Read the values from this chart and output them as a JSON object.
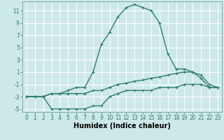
{
  "title": "",
  "xlabel": "Humidex (Indice chaleur)",
  "ylabel": "",
  "bg_color": "#cde8e8",
  "grid_color": "#b8d8d8",
  "line_color": "#2e7d6e",
  "xlim": [
    -0.5,
    23.5
  ],
  "ylim": [
    -5.5,
    12.5
  ],
  "xticks": [
    0,
    1,
    2,
    3,
    4,
    5,
    6,
    7,
    8,
    9,
    10,
    11,
    12,
    13,
    14,
    15,
    16,
    17,
    18,
    19,
    20,
    21,
    22,
    23
  ],
  "yticks": [
    -5,
    -3,
    -1,
    1,
    3,
    5,
    7,
    9,
    11
  ],
  "series1_x": [
    0,
    1,
    2,
    3,
    4,
    5,
    6,
    7,
    8,
    9,
    10,
    11,
    12,
    13,
    14,
    15,
    16,
    17,
    18,
    19,
    20,
    21,
    22,
    23
  ],
  "series1_y": [
    -3,
    -3,
    -3,
    -5,
    -5,
    -5,
    -5,
    -5,
    -4.5,
    -4.5,
    -3,
    -2.5,
    -2,
    -2,
    -2,
    -2,
    -1.5,
    -1.5,
    -1.5,
    -1,
    -1,
    -1,
    -1.5,
    -1.5
  ],
  "series2_x": [
    0,
    1,
    2,
    3,
    4,
    5,
    6,
    7,
    8,
    9,
    10,
    11,
    12,
    13,
    14,
    15,
    16,
    17,
    18,
    19,
    20,
    21,
    22,
    23
  ],
  "series2_y": [
    -3,
    -3,
    -3,
    -2.5,
    -2.5,
    -2.5,
    -2.5,
    -2.5,
    -2,
    -2,
    -1.5,
    -1,
    -0.8,
    -0.5,
    -0.3,
    0,
    0.2,
    0.5,
    0.8,
    1,
    1,
    0.5,
    -1,
    -1.5
  ],
  "series3_x": [
    0,
    1,
    2,
    3,
    4,
    5,
    6,
    7,
    8,
    9,
    10,
    11,
    12,
    13,
    14,
    15,
    16,
    17,
    18,
    19,
    20,
    21,
    22,
    23
  ],
  "series3_y": [
    -3,
    -3,
    -3,
    -2.5,
    -2.5,
    -2,
    -1.5,
    -1.5,
    1,
    5.5,
    7.5,
    10,
    11.5,
    12,
    11.5,
    11,
    9,
    4,
    1.5,
    1.5,
    1,
    0,
    -1.5,
    -1.5
  ],
  "marker": "+",
  "markersize": 3,
  "linewidth": 1.0,
  "xlabel_fontsize": 7,
  "tick_fontsize": 5.5
}
